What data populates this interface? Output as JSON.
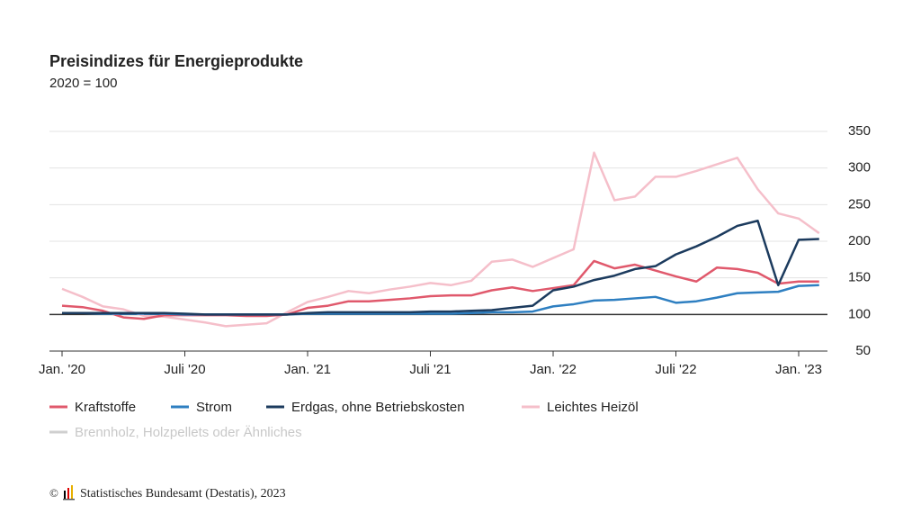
{
  "chart_data": {
    "type": "line",
    "title": "Preisindizes für Energieprodukte",
    "subtitle": "2020 = 100",
    "categories": [
      "Jan. '20",
      null,
      null,
      null,
      null,
      null,
      "Juli '20",
      null,
      null,
      null,
      null,
      null,
      "Jan. '21",
      null,
      null,
      null,
      null,
      null,
      "Juli '21",
      null,
      null,
      null,
      null,
      null,
      "Jan. '22",
      null,
      null,
      null,
      null,
      null,
      "Juli '22",
      null,
      null,
      null,
      null,
      null,
      "Jan. '23",
      null
    ],
    "series": [
      {
        "name": "Kraftstoffe",
        "color": "#e0596c",
        "values": [
          112,
          110,
          105,
          96,
          94,
          99,
          99,
          99,
          99,
          98,
          98,
          100,
          109,
          112,
          118,
          118,
          120,
          122,
          125,
          126,
          126,
          133,
          137,
          132,
          136,
          140,
          173,
          163,
          168,
          160,
          152,
          145,
          164,
          162,
          157,
          142,
          145,
          145
        ]
      },
      {
        "name": "Strom",
        "color": "#2e7fc1",
        "values": [
          102,
          102,
          101,
          101,
          101,
          101,
          100,
          100,
          100,
          100,
          100,
          100,
          101,
          101,
          101,
          101,
          101,
          101,
          101,
          101,
          102,
          103,
          103,
          104,
          111,
          114,
          119,
          120,
          122,
          124,
          116,
          118,
          123,
          129,
          130,
          131,
          139,
          140
        ]
      },
      {
        "name": "Erdgas, ohne Betriebskosten",
        "color": "#1c3b5e",
        "values": [
          102,
          102,
          102,
          102,
          102,
          102,
          101,
          100,
          100,
          100,
          100,
          100,
          102,
          103,
          103,
          103,
          103,
          103,
          104,
          104,
          105,
          106,
          109,
          112,
          133,
          138,
          147,
          153,
          162,
          166,
          182,
          193,
          206,
          221,
          228,
          140,
          202,
          203
        ]
      },
      {
        "name": "Leichtes Heizöl",
        "color": "#f5bfca",
        "values": [
          135,
          124,
          111,
          107,
          98,
          97,
          93,
          89,
          84,
          86,
          88,
          103,
          117,
          124,
          132,
          129,
          134,
          138,
          143,
          140,
          146,
          172,
          175,
          165,
          177,
          189,
          321,
          256,
          261,
          288,
          288,
          296,
          305,
          314,
          271,
          238,
          231,
          211
        ]
      }
    ],
    "legend_inactive": [
      "Brennholz, Holzpellets oder Ähnliches"
    ],
    "ylim": [
      50,
      350
    ],
    "yticks": [
      50,
      100,
      150,
      200,
      250,
      300,
      350
    ],
    "baseline": 100,
    "grid": true,
    "source": "Statistisches Bundesamt (Destatis), 2023"
  }
}
